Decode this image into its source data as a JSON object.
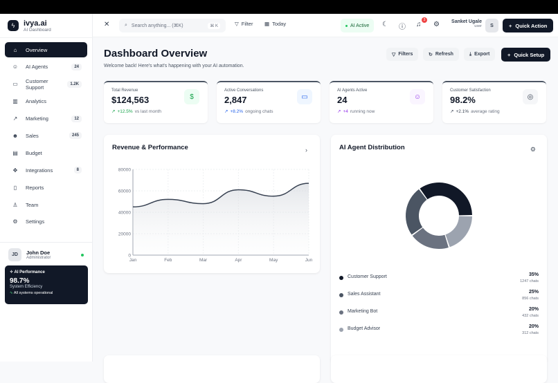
{
  "brand": {
    "name": "ivya.ai",
    "sub": "AI Dashboard"
  },
  "sidebar": {
    "items": [
      {
        "label": "Overview",
        "icon": "home-icon",
        "glyph": "⌂",
        "badge": ""
      },
      {
        "label": "AI Agents",
        "icon": "bot-icon",
        "glyph": "☺",
        "badge": "24"
      },
      {
        "label": "Customer Support",
        "icon": "message-icon",
        "glyph": "▭",
        "badge": "1.2K"
      },
      {
        "label": "Analytics",
        "icon": "bar-chart-icon",
        "glyph": "▥",
        "badge": ""
      },
      {
        "label": "Marketing",
        "icon": "trending-icon",
        "glyph": "↗",
        "badge": "12"
      },
      {
        "label": "Sales",
        "icon": "users-icon",
        "glyph": "☻",
        "badge": "245"
      },
      {
        "label": "Budget",
        "icon": "calculator-icon",
        "glyph": "▤",
        "badge": ""
      },
      {
        "label": "Integrations",
        "icon": "puzzle-icon",
        "glyph": "✥",
        "badge": "8"
      },
      {
        "label": "Reports",
        "icon": "file-icon",
        "glyph": "▯",
        "badge": ""
      },
      {
        "label": "Team",
        "icon": "user-check-icon",
        "glyph": "♙",
        "badge": ""
      },
      {
        "label": "Settings",
        "icon": "gear-icon",
        "glyph": "⚙",
        "badge": ""
      }
    ]
  },
  "user": {
    "initials": "JD",
    "name": "John Doe",
    "role": "Administrator"
  },
  "performance": {
    "title": "AI Performance",
    "value": "98.7%",
    "label": "System Efficiency",
    "status": "All systems operational"
  },
  "header": {
    "search_placeholder": "Search anything... (⌘K)",
    "shortcut": "⌘ K",
    "filter": "Filter",
    "today": "Today",
    "ai_status": "AI Active",
    "notifications": "3",
    "user_name": "Sanket Ugale",
    "user_role": "user",
    "user_initial": "S",
    "quick_action": "Quick Action"
  },
  "page": {
    "title": "Dashboard Overview",
    "subtitle": "Welcome back! Here's what's happening with your AI automation.",
    "filters": "Filters",
    "refresh": "Refresh",
    "export": "Export",
    "quick_setup": "Quick Setup"
  },
  "stats": [
    {
      "label": "Total Revenue",
      "value": "$124,563",
      "change": "+12.5%",
      "note": "vs last month",
      "color": "#16a34a",
      "icon": "dollar-icon",
      "glyph": "$",
      "bg": "#ecfdf3"
    },
    {
      "label": "Active Conversations",
      "value": "2,847",
      "change": "+8.2%",
      "note": "ongoing chats",
      "color": "#2563eb",
      "icon": "message-icon",
      "glyph": "▭",
      "bg": "#eff6ff"
    },
    {
      "label": "AI Agents Active",
      "value": "24",
      "change": "+4",
      "note": "running now",
      "color": "#9333ea",
      "icon": "bot-icon",
      "glyph": "☺",
      "bg": "#faf5ff"
    },
    {
      "label": "Customer Satisfaction",
      "value": "98.2%",
      "change": "+2.1%",
      "note": "average rating",
      "color": "#374151",
      "icon": "target-icon",
      "glyph": "◎",
      "bg": "#f5f6f8"
    }
  ],
  "revenue_card": {
    "title": "Revenue & Performance"
  },
  "distribution_card": {
    "title": "AI Agent Distribution"
  },
  "chart_data": [
    {
      "type": "area",
      "title": "Revenue & Performance",
      "categories": [
        "Jan",
        "Feb",
        "Mar",
        "Apr",
        "May",
        "Jun"
      ],
      "values": [
        45000,
        52000,
        48000,
        61000,
        55000,
        67000
      ],
      "ylim": [
        0,
        80000
      ],
      "yticks": [
        "0",
        "20000",
        "40000",
        "60000",
        "80000"
      ],
      "grid": true,
      "color": "#374151"
    },
    {
      "type": "pie",
      "title": "AI Agent Distribution",
      "donut": true,
      "slices": [
        {
          "name": "Customer Support",
          "value": 35,
          "chats": "1247 chats",
          "pct": "35%",
          "color": "#111827"
        },
        {
          "name": "Sales Assistant",
          "value": 25,
          "chats": "856 chats",
          "pct": "25%",
          "color": "#4b5563"
        },
        {
          "name": "Marketing Bot",
          "value": 20,
          "chats": "432 chats",
          "pct": "20%",
          "color": "#6b7280"
        },
        {
          "name": "Budget Advisor",
          "value": 20,
          "chats": "312 chats",
          "pct": "20%",
          "color": "#9ca3af"
        }
      ]
    }
  ]
}
